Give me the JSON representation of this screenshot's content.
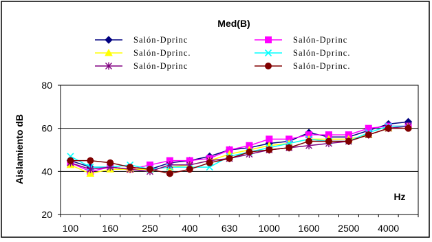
{
  "chart_data": {
    "type": "line",
    "title": "Med(B)",
    "ylabel": "Aislamiento dB",
    "xlabel": "Hz",
    "ylim": [
      20,
      80
    ],
    "yticks": [
      20,
      40,
      60,
      80
    ],
    "grid": "horizontal major gridlines",
    "legend_position": "top",
    "categories": [
      "100",
      "125",
      "160",
      "200",
      "250",
      "315",
      "400",
      "500",
      "630",
      "800",
      "1000",
      "1250",
      "1600",
      "2000",
      "2500",
      "3150",
      "4000",
      "5000"
    ],
    "xtick_labels": [
      "100",
      "160",
      "250",
      "400",
      "630",
      "1000",
      "1600",
      "2500",
      "4000"
    ],
    "series": [
      {
        "name": "Salón-Dprinc",
        "color": "#000080",
        "marker": "diamond",
        "values": [
          45,
          42,
          42,
          41,
          41,
          44,
          45,
          47,
          50,
          51,
          53,
          54,
          58,
          56,
          56,
          59,
          62,
          63
        ]
      },
      {
        "name": "Salón-Dprinc",
        "color": "#ff00ff",
        "marker": "square",
        "values": [
          44,
          40,
          42,
          41,
          43,
          45,
          45,
          46,
          50,
          52,
          55,
          55,
          57,
          57,
          57,
          60,
          61,
          61
        ]
      },
      {
        "name": "Salón-Dprinc.",
        "color": "#ffff00",
        "marker": "triangle",
        "values": [
          43,
          39,
          41,
          41,
          41,
          42,
          43,
          45,
          48,
          50,
          52,
          53,
          55,
          55,
          55,
          57,
          60,
          61
        ]
      },
      {
        "name": "Salón-Dprinc.",
        "color": "#00ffff",
        "marker": "x",
        "values": [
          47,
          42,
          42,
          43,
          41,
          42,
          42,
          42,
          47,
          49,
          51,
          53,
          55,
          54,
          54,
          58,
          61,
          61
        ]
      },
      {
        "name": "Salón-Dprinc",
        "color": "#800080",
        "marker": "star",
        "values": [
          44,
          41,
          42,
          41,
          40,
          43,
          43,
          45,
          46,
          48,
          50,
          51,
          52,
          53,
          54,
          57,
          60,
          61
        ]
      },
      {
        "name": "Salón-Dprinc.",
        "color": "#800000",
        "marker": "circle",
        "values": [
          45,
          45,
          44,
          42,
          41,
          39,
          41,
          44,
          46,
          49,
          50,
          51,
          54,
          54,
          54,
          57,
          60,
          60
        ]
      }
    ]
  }
}
